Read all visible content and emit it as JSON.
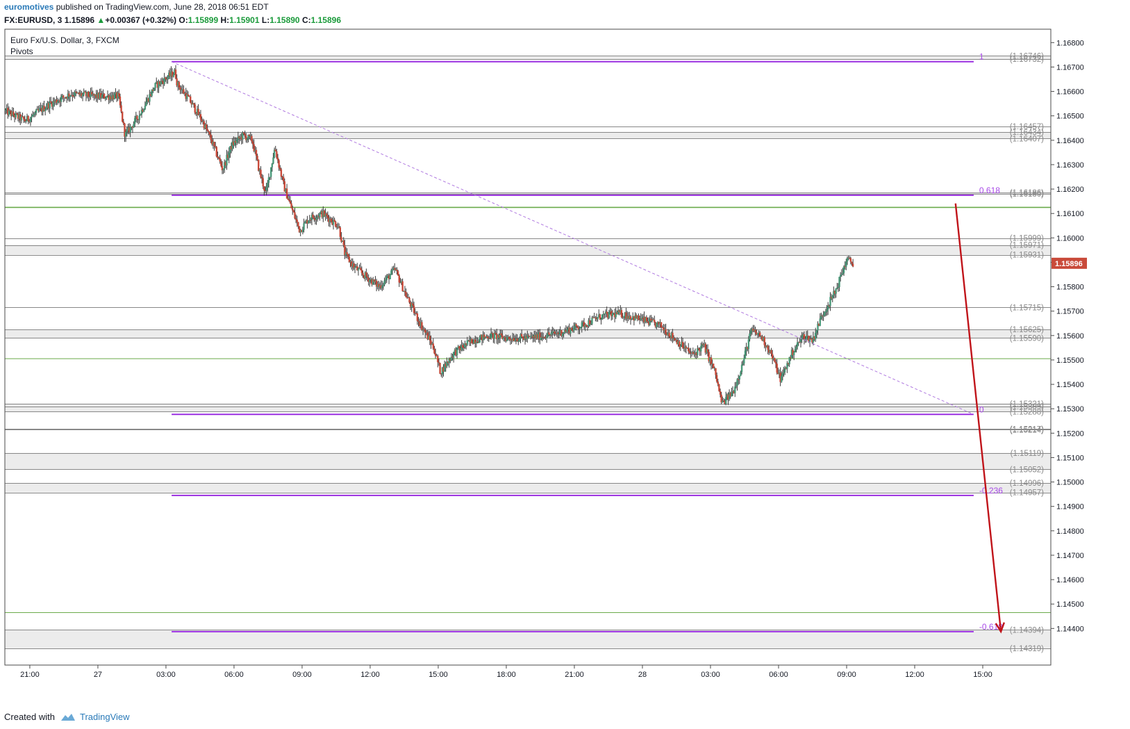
{
  "header": {
    "user": "euromotives",
    "published": " published on TradingView.com, June 28, 2018 06:51 EDT",
    "symbol": "FX:EURUSD, 3",
    "price": "1.15896",
    "change_arrow": "▲",
    "change": "+0.00367 (+0.32%)",
    "o_label": "O:",
    "o_val": "1.15899",
    "h_label": "H:",
    "h_val": "1.15901",
    "l_label": "L:",
    "l_val": "1.15890",
    "c_label": "C:",
    "c_val": "1.15896"
  },
  "legend": {
    "title": "Euro Fx/U.S. Dollar, 3, FXCM",
    "indicator": "Pivots"
  },
  "footer": {
    "created_with": "Created with",
    "brand": "TradingView"
  },
  "colors": {
    "up": "#4a9a7a",
    "down": "#c94a3a",
    "fib": "#9a2ee0",
    "pivot": "#888888",
    "green_line": "#6aaa4a",
    "trend": "#b07ae0",
    "arrow": "#c0141a",
    "price_tag": "#c94a3a"
  },
  "chart_data": {
    "type": "candlestick",
    "y_range": [
      1.1425,
      1.16855
    ],
    "y_ticks": [
      "1.16800",
      "1.16700",
      "1.16600",
      "1.16500",
      "1.16400",
      "1.16300",
      "1.16200",
      "1.16100",
      "1.16000",
      "1.15900",
      "1.15800",
      "1.15700",
      "1.15600",
      "1.15500",
      "1.15400",
      "1.15300",
      "1.15200",
      "1.15100",
      "1.15000",
      "1.14900",
      "1.14800",
      "1.14700",
      "1.14600",
      "1.14500",
      "1.14400"
    ],
    "x_ticks": [
      "21:00",
      "27",
      "03:00",
      "06:00",
      "09:00",
      "12:00",
      "15:00",
      "18:00",
      "21:00",
      "28",
      "03:00",
      "06:00",
      "09:00",
      "12:00",
      "15:00"
    ],
    "x_range_hours": [
      -4.1,
      42
    ],
    "time_note": "hours relative to June 27 00:00",
    "last_price": {
      "label": "1.15896",
      "value": 1.15896
    },
    "pivot_levels": [
      {
        "label": "(1.16746)",
        "value": 1.16746
      },
      {
        "label": "(1.16732)",
        "value": 1.16732
      },
      {
        "label": "(1.16457)",
        "value": 1.16457
      },
      {
        "label": "(1.16434)",
        "value": 1.16434
      },
      {
        "label": "(1.16407)",
        "value": 1.16407
      },
      {
        "label": "(1.16186)",
        "value": 1.16186
      },
      {
        "label": "(1.16180)",
        "value": 1.1618
      },
      {
        "label": "(1.15999)",
        "value": 1.15999
      },
      {
        "label": "(1.15971)",
        "value": 1.15971
      },
      {
        "label": "(1.15931)",
        "value": 1.15931
      },
      {
        "label": "(1.15715)",
        "value": 1.15715
      },
      {
        "label": "(1.15625)",
        "value": 1.15625
      },
      {
        "label": "(1.15590)",
        "value": 1.1559
      },
      {
        "label": "(1.15321)",
        "value": 1.15321
      },
      {
        "label": "(1.15309)",
        "value": 1.15309
      },
      {
        "label": "(1.15288)",
        "value": 1.15288
      },
      {
        "label": "(1.15217)",
        "value": 1.15217
      },
      {
        "label": "(1.15214)",
        "value": 1.15214
      },
      {
        "label": "(1.15119)",
        "value": 1.15119
      },
      {
        "label": "(1.15052)",
        "value": 1.15052
      },
      {
        "label": "(1.14996)",
        "value": 1.14996
      },
      {
        "label": "(1.14957)",
        "value": 1.14957
      },
      {
        "label": "(1.14394)",
        "value": 1.14394
      },
      {
        "label": "(1.14319)",
        "value": 1.14319
      }
    ],
    "green_levels": [
      1.16125,
      1.15505,
      1.14465
    ],
    "fib_levels": [
      {
        "label": "1",
        "value": 1.16722
      },
      {
        "label": "0.618",
        "value": 1.16175
      },
      {
        "label": "0",
        "value": 1.15277
      },
      {
        "label": "-0.236",
        "value": 1.14945
      },
      {
        "label": "-0.618",
        "value": 1.14387
      }
    ],
    "fib_time_range_hours": [
      3.25,
      38.6
    ],
    "trendline": {
      "from": {
        "t": 3.25,
        "p": 1.16722
      },
      "to": {
        "t": 38.6,
        "p": 1.15277
      }
    },
    "arrow": {
      "from": {
        "t": 37.8,
        "p": 1.16141
      },
      "to": {
        "t": 39.8,
        "p": 1.14387
      }
    },
    "path_keypoints": [
      [
        -4.1,
        1.1652
      ],
      [
        -3.2,
        1.1648
      ],
      [
        -2.1,
        1.1655
      ],
      [
        -1.2,
        1.1659
      ],
      [
        -0.1,
        1.1658
      ],
      [
        0.9,
        1.1658
      ],
      [
        1.2,
        1.1642
      ],
      [
        1.8,
        1.165
      ],
      [
        2.5,
        1.1662
      ],
      [
        3.4,
        1.1668
      ],
      [
        3.5,
        1.1663
      ],
      [
        4.0,
        1.1657
      ],
      [
        4.6,
        1.1648
      ],
      [
        5.0,
        1.164
      ],
      [
        5.5,
        1.1628
      ],
      [
        5.9,
        1.1638
      ],
      [
        6.4,
        1.1642
      ],
      [
        6.8,
        1.164
      ],
      [
        7.1,
        1.1628
      ],
      [
        7.4,
        1.1618
      ],
      [
        7.8,
        1.1637
      ],
      [
        8.2,
        1.1621
      ],
      [
        8.5,
        1.1613
      ],
      [
        8.9,
        1.1603
      ],
      [
        9.3,
        1.1608
      ],
      [
        9.9,
        1.161
      ],
      [
        10.6,
        1.1605
      ],
      [
        10.9,
        1.1593
      ],
      [
        11.3,
        1.1588
      ],
      [
        11.7,
        1.1585
      ],
      [
        12.4,
        1.158
      ],
      [
        13.1,
        1.1587
      ],
      [
        13.6,
        1.1576
      ],
      [
        14.2,
        1.1565
      ],
      [
        14.8,
        1.1555
      ],
      [
        15.1,
        1.1545
      ],
      [
        15.7,
        1.1553
      ],
      [
        16.5,
        1.1558
      ],
      [
        17.3,
        1.156
      ],
      [
        18.0,
        1.1559
      ],
      [
        19.0,
        1.1559
      ],
      [
        20.3,
        1.1561
      ],
      [
        21.3,
        1.1564
      ],
      [
        22.2,
        1.1568
      ],
      [
        23.0,
        1.1569
      ],
      [
        23.8,
        1.1567
      ],
      [
        24.8,
        1.1564
      ],
      [
        25.5,
        1.1558
      ],
      [
        26.2,
        1.1552
      ],
      [
        26.7,
        1.1556
      ],
      [
        27.2,
        1.1545
      ],
      [
        27.5,
        1.1532
      ],
      [
        28.0,
        1.1537
      ],
      [
        28.4,
        1.1548
      ],
      [
        28.8,
        1.1562
      ],
      [
        29.2,
        1.156
      ],
      [
        29.6,
        1.1554
      ],
      [
        30.1,
        1.1542
      ],
      [
        30.6,
        1.1553
      ],
      [
        31.1,
        1.156
      ],
      [
        31.5,
        1.1558
      ],
      [
        31.9,
        1.1568
      ],
      [
        32.5,
        1.1578
      ],
      [
        33.0,
        1.1591
      ],
      [
        33.3,
        1.15896
      ]
    ]
  }
}
